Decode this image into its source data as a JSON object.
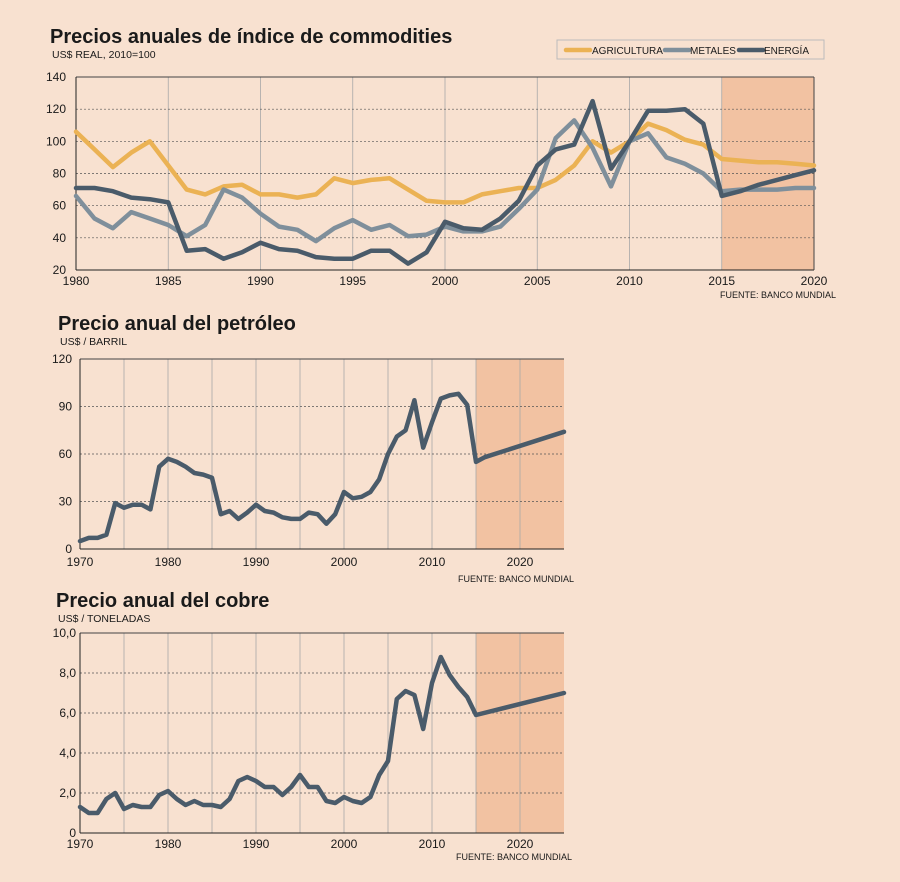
{
  "colors": {
    "background": "#f8e1d0",
    "forecast": "#f2c2a2",
    "agricultura": "#ebb254",
    "metales": "#7f8f9b",
    "energia": "#4a5b6a",
    "line": "#4a5b6a"
  },
  "chart_data": [
    {
      "type": "line",
      "title": "Precios anuales de índice de commodities",
      "subtitle": "US$ REAL, 2010=100",
      "source": "FUENTE: BANCO MUNDIAL",
      "xlim": [
        1980,
        2020
      ],
      "ylim": [
        20,
        140
      ],
      "xticks": [
        "1980",
        "1985",
        "1990",
        "1995",
        "2000",
        "2005",
        "2010",
        "2015",
        "2020"
      ],
      "yticks": [
        "20",
        "40",
        "60",
        "80",
        "100",
        "120",
        "140"
      ],
      "forecast_range": [
        2015,
        2020
      ],
      "series": [
        {
          "name": "AGRICULTURA",
          "x": [
            1980,
            1981,
            1982,
            1983,
            1984,
            1985,
            1986,
            1987,
            1988,
            1989,
            1990,
            1991,
            1992,
            1993,
            1994,
            1995,
            1996,
            1997,
            1998,
            1999,
            2000,
            2001,
            2002,
            2003,
            2004,
            2005,
            2006,
            2007,
            2008,
            2009,
            2010,
            2011,
            2012,
            2013,
            2014,
            2015,
            2016,
            2017,
            2018,
            2019,
            2020
          ],
          "values": [
            106,
            95,
            84,
            93,
            100,
            85,
            70,
            67,
            72,
            73,
            67,
            67,
            65,
            67,
            77,
            74,
            76,
            77,
            70,
            63,
            62,
            62,
            67,
            69,
            71,
            71,
            76,
            85,
            100,
            93,
            100,
            111,
            107,
            101,
            98,
            89,
            88,
            87,
            87,
            86,
            85
          ]
        },
        {
          "name": "METALES",
          "x": [
            1980,
            1981,
            1982,
            1983,
            1984,
            1985,
            1986,
            1987,
            1988,
            1989,
            1990,
            1991,
            1992,
            1993,
            1994,
            1995,
            1996,
            1997,
            1998,
            1999,
            2000,
            2001,
            2002,
            2003,
            2004,
            2005,
            2006,
            2007,
            2008,
            2009,
            2010,
            2011,
            2012,
            2013,
            2014,
            2015,
            2016,
            2017,
            2018,
            2019,
            2020
          ],
          "values": [
            66,
            52,
            46,
            56,
            52,
            48,
            41,
            48,
            70,
            65,
            55,
            47,
            45,
            38,
            46,
            51,
            45,
            48,
            41,
            42,
            47,
            44,
            44,
            47,
            58,
            70,
            102,
            113,
            96,
            72,
            100,
            105,
            90,
            86,
            80,
            69,
            70,
            70,
            70,
            71,
            71
          ]
        },
        {
          "name": "ENERGÍA",
          "x": [
            1980,
            1981,
            1982,
            1983,
            1984,
            1985,
            1986,
            1987,
            1988,
            1989,
            1990,
            1991,
            1992,
            1993,
            1994,
            1995,
            1996,
            1997,
            1998,
            1999,
            2000,
            2001,
            2002,
            2003,
            2004,
            2005,
            2006,
            2007,
            2008,
            2009,
            2010,
            2011,
            2012,
            2013,
            2014,
            2015,
            2016,
            2017,
            2018,
            2019,
            2020
          ],
          "values": [
            71,
            71,
            69,
            65,
            64,
            62,
            32,
            33,
            27,
            31,
            37,
            33,
            32,
            28,
            27,
            27,
            32,
            32,
            24,
            31,
            50,
            46,
            45,
            52,
            63,
            85,
            95,
            98,
            125,
            83,
            100,
            119,
            119,
            120,
            111,
            66,
            69,
            73,
            76,
            79,
            82
          ]
        }
      ]
    },
    {
      "type": "line",
      "title": "Precio anual del petróleo",
      "subtitle": "US$ / BARRIL",
      "source": "FUENTE: BANCO MUNDIAL",
      "xlim": [
        1970,
        2025
      ],
      "ylim": [
        0,
        120
      ],
      "xticks": [
        "1970",
        "1980",
        "1990",
        "2000",
        "2010",
        "2020"
      ],
      "yticks": [
        "0",
        "30",
        "60",
        "90",
        "120"
      ],
      "forecast_range": [
        2015,
        2025
      ],
      "series": [
        {
          "name": "Petróleo",
          "x": [
            1970,
            1971,
            1972,
            1973,
            1974,
            1975,
            1976,
            1977,
            1978,
            1979,
            1980,
            1981,
            1982,
            1983,
            1984,
            1985,
            1986,
            1987,
            1988,
            1989,
            1990,
            1991,
            1992,
            1993,
            1994,
            1995,
            1996,
            1997,
            1998,
            1999,
            2000,
            2001,
            2002,
            2003,
            2004,
            2005,
            2006,
            2007,
            2008,
            2009,
            2010,
            2011,
            2012,
            2013,
            2014,
            2015,
            2016,
            2025
          ],
          "values": [
            5,
            7,
            7,
            9,
            29,
            26,
            28,
            28,
            25,
            52,
            57,
            55,
            52,
            48,
            47,
            45,
            22,
            24,
            19,
            23,
            28,
            24,
            23,
            20,
            19,
            19,
            23,
            22,
            16,
            22,
            36,
            32,
            33,
            36,
            44,
            60,
            71,
            75,
            94,
            64,
            80,
            95,
            97,
            98,
            91,
            55,
            58,
            74
          ]
        }
      ]
    },
    {
      "type": "line",
      "title": "Precio anual del cobre",
      "subtitle": "US$ / TONELADAS",
      "source": "FUENTE: BANCO MUNDIAL",
      "xlim": [
        1970,
        2025
      ],
      "ylim": [
        0,
        10
      ],
      "xticks": [
        "1970",
        "1980",
        "1990",
        "2000",
        "2010",
        "2020"
      ],
      "yticks": [
        "0",
        "2,0",
        "4,0",
        "6,0",
        "8,0",
        "10,0"
      ],
      "forecast_range": [
        2015,
        2025
      ],
      "series": [
        {
          "name": "Cobre",
          "x": [
            1970,
            1971,
            1972,
            1973,
            1974,
            1975,
            1976,
            1977,
            1978,
            1979,
            1980,
            1981,
            1982,
            1983,
            1984,
            1985,
            1986,
            1987,
            1988,
            1989,
            1990,
            1991,
            1992,
            1993,
            1994,
            1995,
            1996,
            1997,
            1998,
            1999,
            2000,
            2001,
            2002,
            2003,
            2004,
            2005,
            2006,
            2007,
            2008,
            2009,
            2010,
            2011,
            2012,
            2013,
            2014,
            2015,
            2025
          ],
          "values": [
            1.3,
            1.0,
            1.0,
            1.7,
            2.0,
            1.2,
            1.4,
            1.3,
            1.3,
            1.9,
            2.1,
            1.7,
            1.4,
            1.6,
            1.4,
            1.4,
            1.3,
            1.7,
            2.6,
            2.8,
            2.6,
            2.3,
            2.3,
            1.9,
            2.3,
            2.9,
            2.3,
            2.3,
            1.6,
            1.5,
            1.8,
            1.6,
            1.5,
            1.8,
            2.9,
            3.6,
            6.7,
            7.1,
            6.9,
            5.2,
            7.5,
            8.8,
            7.9,
            7.3,
            6.8,
            5.9,
            7.0
          ]
        }
      ]
    }
  ]
}
